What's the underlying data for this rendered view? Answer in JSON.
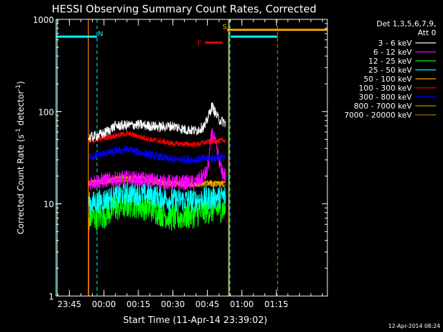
{
  "chart_data": {
    "type": "line",
    "title": "HESSI Observing Summary Count Rates, Corrected",
    "xlabel": "Start Time (11-Apr-14 23:39:02)",
    "ylabel_main": "Corrected Count Rate (s",
    "ylabel_sup1": "-1",
    "ylabel_mid": " detector",
    "ylabel_sup2": "-1",
    "ylabel_end": ")",
    "y_scale": "log",
    "ylim": [
      1,
      1000
    ],
    "xlim_minutes": [
      -20.8,
      97.2
    ],
    "y_ticks": [
      {
        "v": 1,
        "label": "1"
      },
      {
        "v": 10,
        "label": "10"
      },
      {
        "v": 100,
        "label": "100"
      },
      {
        "v": 1000,
        "label": "1000"
      }
    ],
    "x_ticks": [
      {
        "m": -15,
        "label": "23:45"
      },
      {
        "m": 0,
        "label": "00:00"
      },
      {
        "m": 15,
        "label": "00:15"
      },
      {
        "m": 30,
        "label": "00:30"
      },
      {
        "m": 45,
        "label": "00:45"
      },
      {
        "m": 60,
        "label": "01:00"
      },
      {
        "m": 75,
        "label": "01:15"
      }
    ],
    "legend_header": [
      "Det 1,3,5,6,7,9,",
      "Att 0"
    ],
    "legend_position": "right",
    "series": [
      {
        "name": "3 - 6 keV",
        "color": "#ffffff",
        "points": [
          [
            -6.5,
            52
          ],
          [
            0,
            58
          ],
          [
            5,
            70
          ],
          [
            15,
            72
          ],
          [
            25,
            68
          ],
          [
            30,
            70
          ],
          [
            35,
            64
          ],
          [
            40,
            62
          ],
          [
            44,
            70
          ],
          [
            47,
            115
          ],
          [
            50,
            82
          ],
          [
            53,
            75
          ]
        ]
      },
      {
        "name": "6 - 12 keV",
        "color": "#ff00ff",
        "points": [
          [
            -6.5,
            17
          ],
          [
            0,
            18
          ],
          [
            10,
            19
          ],
          [
            20,
            18
          ],
          [
            30,
            17
          ],
          [
            40,
            17
          ],
          [
            45,
            22
          ],
          [
            47,
            60
          ],
          [
            49,
            40
          ],
          [
            51,
            23
          ],
          [
            53,
            20
          ]
        ]
      },
      {
        "name": "12 - 25 keV",
        "color": "#00ff00",
        "points": [
          [
            -6.5,
            7
          ],
          [
            0,
            7.5
          ],
          [
            5,
            9
          ],
          [
            12,
            10
          ],
          [
            20,
            9
          ],
          [
            30,
            7
          ],
          [
            38,
            7.5
          ],
          [
            45,
            8.5
          ],
          [
            53,
            9
          ]
        ]
      },
      {
        "name": "25 - 50 keV",
        "color": "#00ffff",
        "points": [
          [
            -6.5,
            10
          ],
          [
            0,
            11
          ],
          [
            10,
            13
          ],
          [
            20,
            12.5
          ],
          [
            30,
            11
          ],
          [
            40,
            11
          ],
          [
            45,
            11.5
          ],
          [
            53,
            12
          ]
        ]
      },
      {
        "name": "50 - 100 keV",
        "color": "#ffa500",
        "points": [
          [
            -6.5,
            17
          ],
          [
            0,
            18
          ],
          [
            10,
            19.5
          ],
          [
            20,
            18.5
          ],
          [
            30,
            17
          ],
          [
            40,
            16.5
          ],
          [
            45,
            17
          ],
          [
            53,
            17
          ]
        ]
      },
      {
        "name": "100 - 300 keV",
        "color": "#ff0000",
        "points": [
          [
            -6.5,
            47
          ],
          [
            0,
            52
          ],
          [
            10,
            58
          ],
          [
            20,
            50
          ],
          [
            30,
            45
          ],
          [
            40,
            44
          ],
          [
            45,
            47
          ],
          [
            53,
            49
          ]
        ]
      },
      {
        "name": "300 - 800 keV",
        "color": "#0000ff",
        "points": [
          [
            -6.5,
            32
          ],
          [
            0,
            35
          ],
          [
            10,
            39
          ],
          [
            20,
            34
          ],
          [
            30,
            30
          ],
          [
            40,
            30
          ],
          [
            45,
            31
          ],
          [
            53,
            32
          ]
        ]
      },
      {
        "name": "800 - 7000 keV",
        "color": "#cc8800",
        "points": [
          [
            -6.5,
            16
          ],
          [
            0,
            17
          ],
          [
            10,
            18
          ],
          [
            20,
            17
          ],
          [
            30,
            16
          ],
          [
            40,
            16
          ],
          [
            45,
            16
          ],
          [
            53,
            16
          ]
        ]
      },
      {
        "name": "7000 - 20000 keV",
        "color": "#8b7a00",
        "points": []
      }
    ],
    "flags": [
      {
        "label": "N",
        "color": "#00ffff",
        "start": -20.8,
        "end": -3,
        "level": 650,
        "label_at": -1.5
      },
      {
        "label": "F",
        "color": "#ff0000",
        "start": 44,
        "end": 51.5,
        "level": 560,
        "label_at": 41.5
      },
      {
        "label": "S",
        "color": "#ffa500",
        "start": 53.5,
        "end": 97.2,
        "level": 770,
        "label_at": 52.5
      }
    ],
    "dashed_lines": [
      {
        "m": -3,
        "color": "#00ffff"
      },
      {
        "m": 54.8,
        "color": "#00ffff"
      },
      {
        "m": 75.5,
        "color": "#ff8000"
      }
    ],
    "solid_lines": [
      {
        "m": -20.3,
        "color": "#00ffff"
      },
      {
        "m": -6.8,
        "color": "#ff8000"
      },
      {
        "m": 54.2,
        "color": "#ff8000"
      },
      {
        "m": 54.5,
        "color": "#00ffff"
      }
    ],
    "cyan_segments": [
      {
        "start": -20.8,
        "end": -3,
        "level": 650
      },
      {
        "start": 55,
        "end": 75.5,
        "level": 650
      }
    ],
    "footer_timestamp": "12-Apr-2014 08:24"
  }
}
